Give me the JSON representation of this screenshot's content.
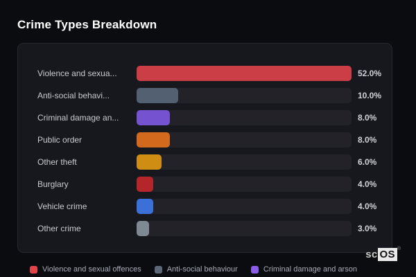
{
  "page": {
    "title": "Crime Types Breakdown",
    "background": "#0b0c10"
  },
  "chart_data": {
    "type": "bar",
    "orientation": "horizontal",
    "title": "Crime Types Breakdown",
    "categories": [
      "Violence and sexua...",
      "Anti-social behavi...",
      "Criminal damage an...",
      "Public order",
      "Other theft",
      "Burglary",
      "Vehicle crime",
      "Other crime"
    ],
    "values": [
      52.0,
      10.0,
      8.0,
      8.0,
      6.0,
      4.0,
      4.0,
      3.0
    ],
    "value_labels": [
      "52.0%",
      "10.0%",
      "8.0%",
      "8.0%",
      "6.0%",
      "4.0%",
      "4.0%",
      "3.0%"
    ],
    "bar_colors": [
      "#cc3e46",
      "#526072",
      "#7452d0",
      "#d2691d",
      "#cf8d13",
      "#b5262b",
      "#3b70d8",
      "#7f8994"
    ],
    "axis_max": 52.0,
    "grid": false,
    "legend_position": "bottom",
    "legend": [
      {
        "label": "Violence and sexual offences",
        "color": "#e2444c"
      },
      {
        "label": "Anti-social behaviour",
        "color": "#5c6878"
      },
      {
        "label": "Criminal damage and arson",
        "color": "#8a5ce8"
      }
    ]
  },
  "branding": {
    "logo_prefix": "sc",
    "logo_suffix": "OS",
    "registered_mark": "®"
  },
  "colors": {
    "card_bg": "#17181d",
    "card_border": "#27282f",
    "track": "#232228",
    "label_text": "#c7cbd2",
    "value_text": "#d0d3d9",
    "legend_text": "#a9adb7",
    "title_text": "#ffffff"
  }
}
